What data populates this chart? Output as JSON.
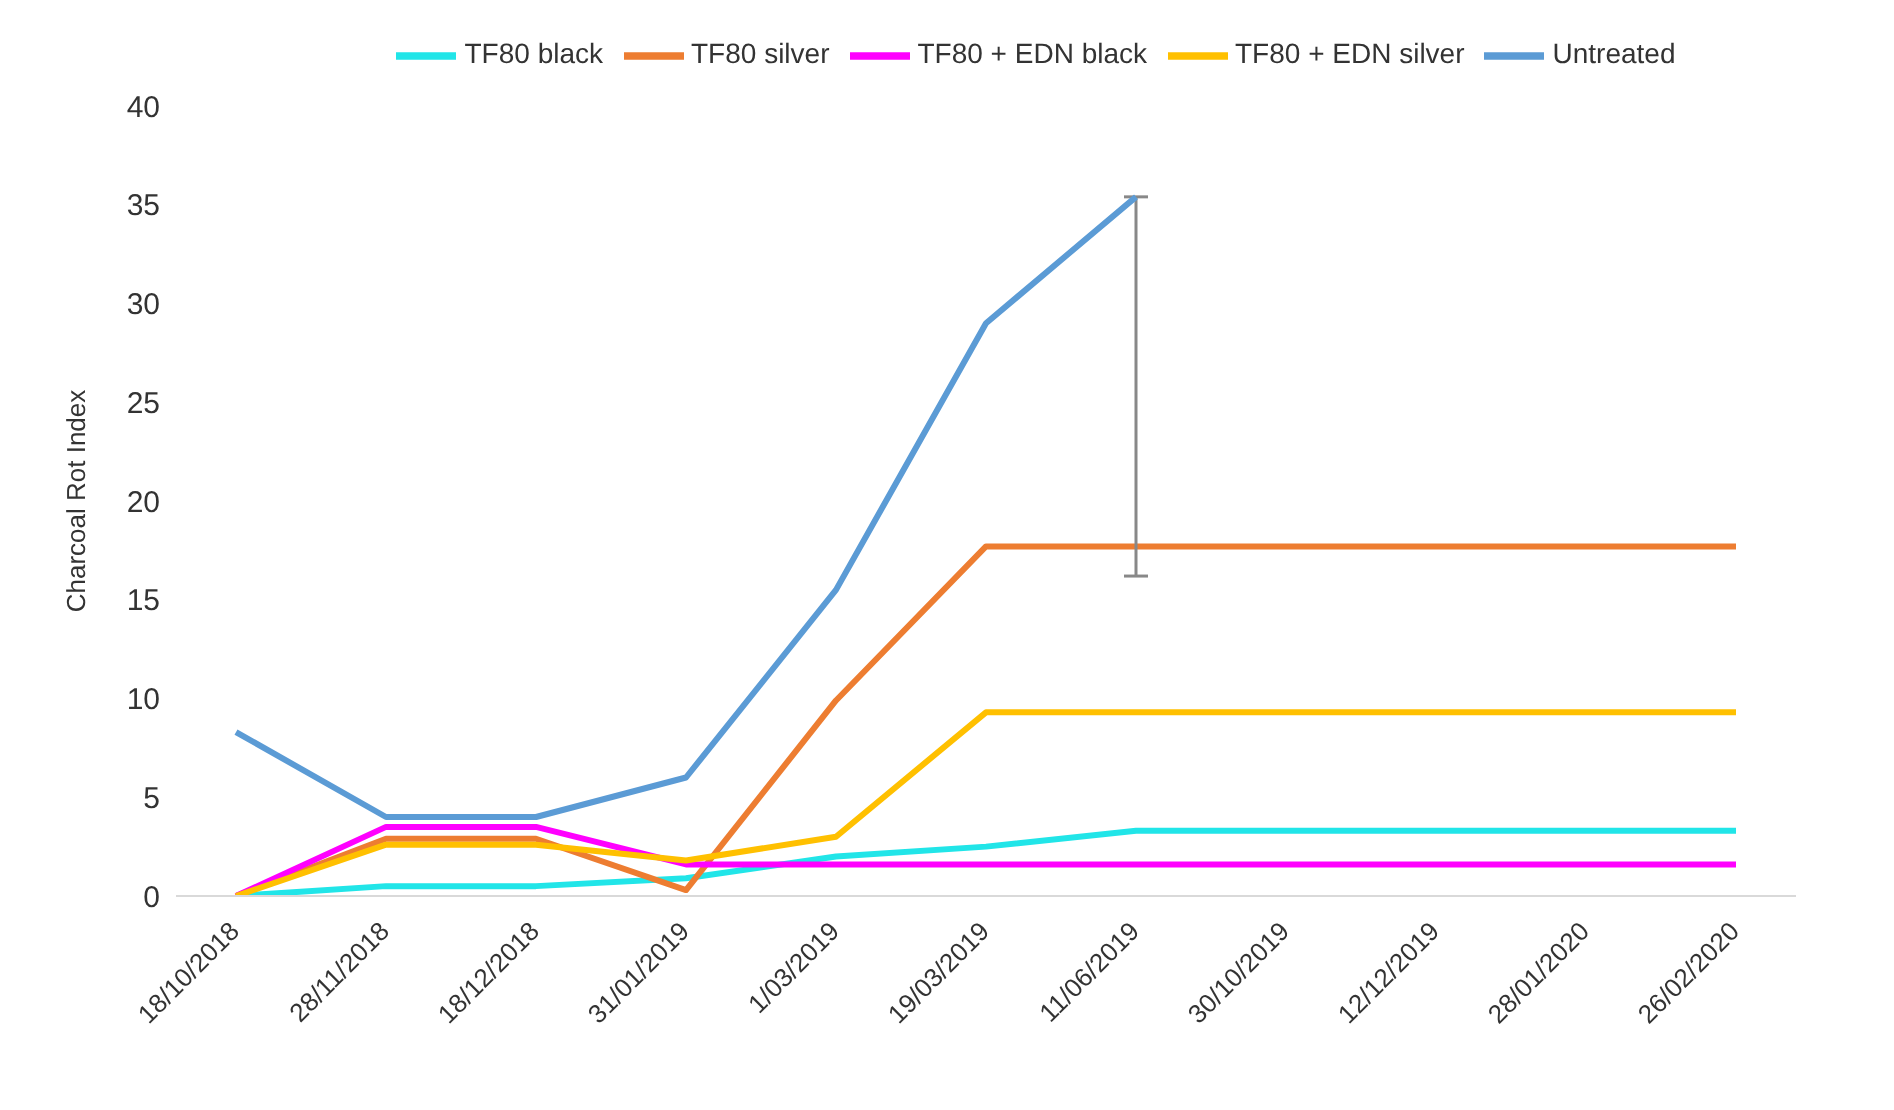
{
  "chart_data": {
    "type": "line",
    "ylabel": "Charcoal Rot Index",
    "categories": [
      "18/10/2018",
      "28/11/2018",
      "18/12/2018",
      "31/01/2019",
      "1/03/2019",
      "19/03/2019",
      "11/06/2019",
      "30/10/2019",
      "12/12/2019",
      "28/01/2020",
      "26/02/2020"
    ],
    "series": [
      {
        "name": "TF80 black",
        "color": "#21e5e8",
        "values": [
          0,
          0.5,
          0.5,
          0.9,
          2,
          2.5,
          3.3,
          3.3,
          3.3,
          3.3,
          3.3
        ]
      },
      {
        "name": "TF80 silver",
        "color": "#ed7d31",
        "values": [
          0,
          2.9,
          2.9,
          0.3,
          9.9,
          17.7,
          17.7,
          17.7,
          17.7,
          17.7,
          17.7
        ]
      },
      {
        "name": "TF80 + EDN black",
        "color": "#ff00ff",
        "values": [
          0,
          3.5,
          3.5,
          1.6,
          1.6,
          1.6,
          1.6,
          1.6,
          1.6,
          1.6,
          1.6
        ]
      },
      {
        "name": "TF80 + EDN silver",
        "color": "#ffc000",
        "values": [
          0,
          2.6,
          2.6,
          1.8,
          3,
          9.3,
          9.3,
          9.3,
          9.3,
          9.3,
          9.3
        ]
      },
      {
        "name": "Untreated",
        "color": "#5b9bd5",
        "values": [
          8.3,
          4,
          4,
          6,
          15.5,
          29,
          35.4,
          null,
          null,
          null,
          null
        ],
        "errors": [
          null,
          null,
          null,
          null,
          null,
          null,
          [
            16.2,
            35.4
          ],
          null,
          null,
          null,
          null
        ]
      }
    ],
    "ylim": [
      0,
      40
    ],
    "yticks": [
      0,
      5,
      10,
      15,
      20,
      25,
      30,
      35,
      40
    ],
    "grid": false,
    "legend": "top",
    "marker": "none"
  }
}
